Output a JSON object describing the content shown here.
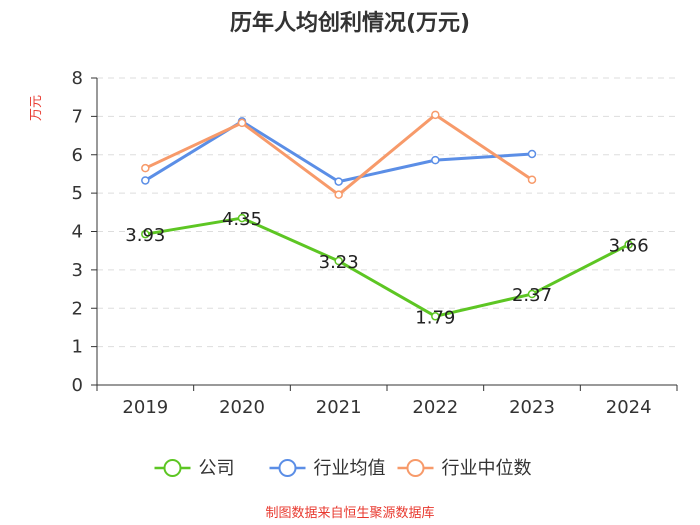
{
  "chart_data": {
    "type": "line",
    "title": "历年人均创利情况(万元)",
    "ylabel": "万元",
    "xlabel": "",
    "ylim": [
      0,
      8
    ],
    "yticks": [
      0,
      1,
      2,
      3,
      4,
      5,
      6,
      7,
      8
    ],
    "categories": [
      "2019",
      "2020",
      "2021",
      "2022",
      "2023",
      "2024"
    ],
    "series": [
      {
        "name": "公司",
        "color": "#5dc623",
        "values": [
          3.93,
          4.35,
          3.23,
          1.79,
          2.37,
          3.66
        ],
        "labels": [
          "3.93",
          "4.35",
          "3.23",
          "1.79",
          "2.37",
          "3.66"
        ]
      },
      {
        "name": "行业均值",
        "color": "#5b8ee6",
        "values": [
          5.33,
          6.87,
          5.3,
          5.86,
          6.02,
          null
        ]
      },
      {
        "name": "行业中位数",
        "color": "#f79a6a",
        "values": [
          5.65,
          6.83,
          4.96,
          7.04,
          5.35,
          null
        ]
      }
    ],
    "legend": "bottom-center",
    "grid": true
  },
  "footer": {
    "source": "制图数据来自恒生聚源数据库"
  }
}
